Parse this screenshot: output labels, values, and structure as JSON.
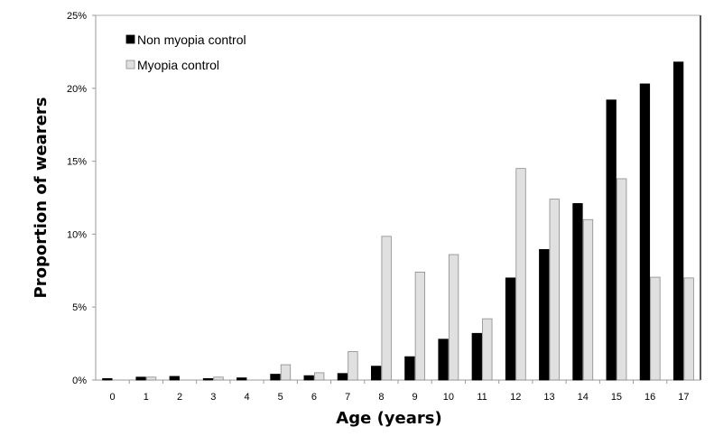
{
  "chart_data": {
    "type": "bar",
    "title": "",
    "xlabel": "Age (years)",
    "ylabel": "Proportion of wearers",
    "categories": [
      "0",
      "1",
      "2",
      "3",
      "4",
      "5",
      "6",
      "7",
      "8",
      "9",
      "10",
      "11",
      "12",
      "13",
      "14",
      "15",
      "16",
      "17"
    ],
    "ylim": [
      0,
      25
    ],
    "yticks": [
      0,
      5,
      10,
      15,
      20,
      25
    ],
    "ytick_labels": [
      "0%",
      "5%",
      "10%",
      "15%",
      "20%",
      "25%"
    ],
    "grid": false,
    "legend_position": "top-left",
    "series": [
      {
        "name": "Non myopia control",
        "color": "#000000",
        "values": [
          0.1,
          0.2,
          0.25,
          0.1,
          0.15,
          0.4,
          0.3,
          0.45,
          0.95,
          1.6,
          2.8,
          3.2,
          7.0,
          8.95,
          12.1,
          19.2,
          20.3,
          21.8
        ]
      },
      {
        "name": "Myopia control",
        "color": "#e0e0e0",
        "values": [
          0,
          0.2,
          0,
          0.2,
          0,
          1.05,
          0.5,
          1.95,
          9.85,
          7.4,
          8.6,
          4.2,
          14.5,
          12.4,
          11.0,
          13.8,
          7.05,
          7.0
        ]
      }
    ]
  }
}
